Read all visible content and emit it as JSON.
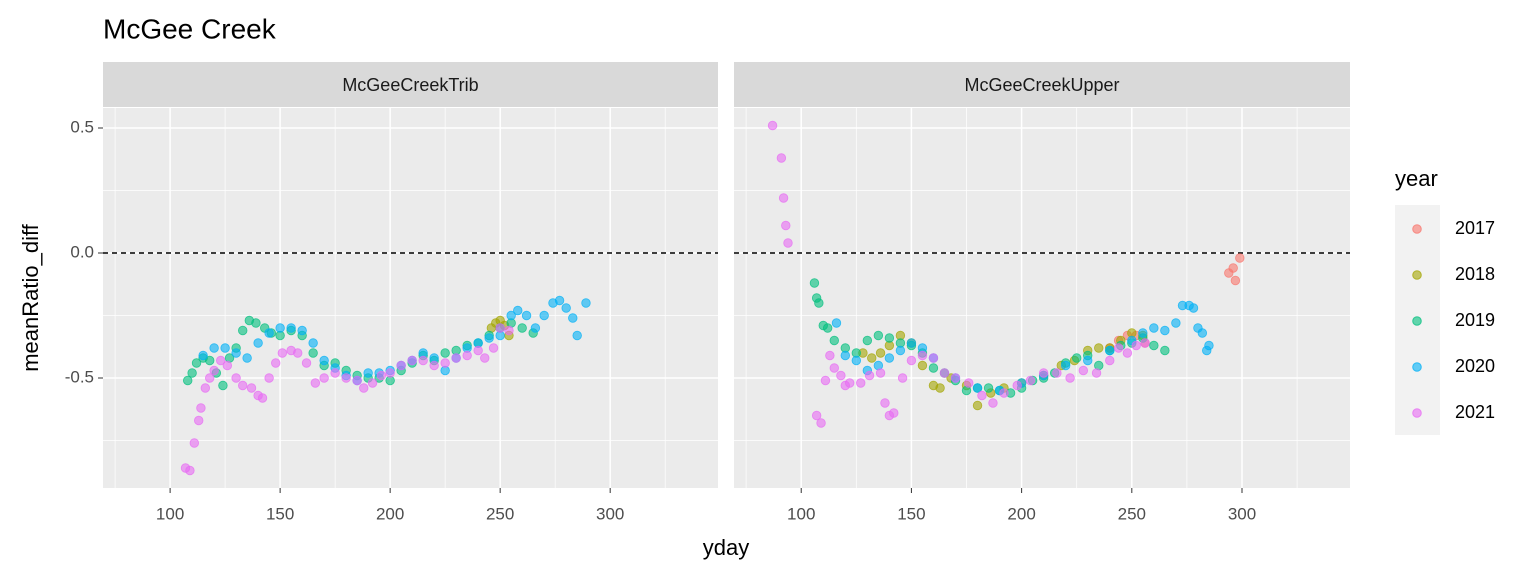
{
  "title": "McGee Creek",
  "x_label": "yday",
  "y_label": "meanRatio_diff",
  "legend_title": "year",
  "chart_data": [
    {
      "type": "scatter",
      "facet": "McGeeCreekTrib",
      "xlim": [
        69.5,
        349
      ],
      "ylim": [
        -0.94,
        0.58
      ],
      "xticks": [
        100,
        150,
        200,
        250,
        300
      ],
      "yticks": [
        -0.5,
        {
          "value": 0,
          "label": "0.0"
        },
        0.5
      ],
      "grid": true,
      "reference_line": 0,
      "series": [
        {
          "name": "2018",
          "color": "#A3A500",
          "x": [
            246,
            248,
            250,
            252,
            254
          ],
          "values": [
            -0.3,
            -0.28,
            -0.27,
            -0.29,
            -0.33
          ]
        },
        {
          "name": "2019",
          "color": "#00BF7D",
          "x": [
            108,
            110,
            112,
            115,
            118,
            121,
            124,
            127,
            130,
            133,
            136,
            139,
            143,
            146,
            150,
            155,
            160,
            165,
            170,
            175,
            180,
            185,
            190,
            195,
            200,
            205,
            210,
            215,
            220,
            225,
            230,
            235,
            240,
            245,
            250,
            255,
            260,
            265
          ],
          "values": [
            -0.51,
            -0.48,
            -0.44,
            -0.42,
            -0.43,
            -0.48,
            -0.53,
            -0.42,
            -0.38,
            -0.31,
            -0.27,
            -0.28,
            -0.3,
            -0.32,
            -0.33,
            -0.31,
            -0.33,
            -0.4,
            -0.45,
            -0.44,
            -0.47,
            -0.49,
            -0.5,
            -0.5,
            -0.51,
            -0.47,
            -0.44,
            -0.41,
            -0.43,
            -0.4,
            -0.39,
            -0.37,
            -0.36,
            -0.33,
            -0.3,
            -0.28,
            -0.3,
            -0.32
          ]
        },
        {
          "name": "2020",
          "color": "#00B0F6",
          "x": [
            115,
            120,
            125,
            130,
            135,
            140,
            145,
            150,
            155,
            160,
            165,
            170,
            175,
            180,
            185,
            190,
            195,
            200,
            205,
            210,
            215,
            220,
            225,
            230,
            235,
            240,
            245,
            250,
            255,
            258,
            262,
            266,
            270,
            274,
            277,
            280,
            283,
            285,
            289
          ],
          "values": [
            -0.41,
            -0.38,
            -0.38,
            -0.4,
            -0.42,
            -0.36,
            -0.32,
            -0.3,
            -0.3,
            -0.31,
            -0.36,
            -0.43,
            -0.46,
            -0.49,
            -0.51,
            -0.48,
            -0.48,
            -0.47,
            -0.45,
            -0.43,
            -0.4,
            -0.42,
            -0.47,
            -0.42,
            -0.38,
            -0.36,
            -0.34,
            -0.33,
            -0.25,
            -0.23,
            -0.25,
            -0.3,
            -0.25,
            -0.2,
            -0.19,
            -0.22,
            -0.26,
            -0.33,
            -0.2
          ]
        },
        {
          "name": "2021",
          "color": "#E76BF3",
          "x": [
            107,
            109,
            111,
            113,
            114,
            116,
            118,
            120,
            123,
            126,
            130,
            133,
            137,
            140,
            142,
            145,
            148,
            151,
            155,
            158,
            162,
            166,
            170,
            175,
            180,
            185,
            188,
            192,
            196,
            200,
            205,
            210,
            215,
            220,
            225,
            230,
            235,
            240,
            243,
            247,
            250,
            254
          ],
          "values": [
            -0.86,
            -0.87,
            -0.76,
            -0.67,
            -0.62,
            -0.54,
            -0.5,
            -0.47,
            -0.43,
            -0.45,
            -0.5,
            -0.53,
            -0.54,
            -0.57,
            -0.58,
            -0.5,
            -0.44,
            -0.4,
            -0.39,
            -0.4,
            -0.44,
            -0.52,
            -0.5,
            -0.48,
            -0.5,
            -0.51,
            -0.54,
            -0.52,
            -0.49,
            -0.48,
            -0.45,
            -0.43,
            -0.43,
            -0.45,
            -0.44,
            -0.42,
            -0.41,
            -0.39,
            -0.42,
            -0.38,
            -0.3,
            -0.31
          ]
        }
      ]
    },
    {
      "type": "scatter",
      "facet": "McGeeCreekUpper",
      "xlim": [
        69.5,
        349
      ],
      "ylim": [
        -0.94,
        0.58
      ],
      "xticks": [
        100,
        150,
        200,
        250,
        300
      ],
      "yticks": [
        -0.5,
        {
          "value": 0,
          "label": "0.0"
        },
        0.5
      ],
      "grid": true,
      "reference_line": 0,
      "series": [
        {
          "name": "2017",
          "color": "#F8766D",
          "x": [
            240,
            244,
            248,
            252,
            256,
            294,
            296,
            297,
            299
          ],
          "values": [
            -0.38,
            -0.35,
            -0.33,
            -0.33,
            -0.36,
            -0.08,
            -0.06,
            -0.11,
            -0.02
          ]
        },
        {
          "name": "2018",
          "color": "#A3A500",
          "x": [
            128,
            132,
            136,
            140,
            145,
            150,
            155,
            160,
            163,
            168,
            175,
            180,
            186,
            192,
            200,
            210,
            218,
            224,
            230,
            235,
            240,
            245,
            250,
            255
          ],
          "values": [
            -0.4,
            -0.42,
            -0.4,
            -0.37,
            -0.33,
            -0.36,
            -0.45,
            -0.53,
            -0.54,
            -0.5,
            -0.53,
            -0.61,
            -0.56,
            -0.54,
            -0.52,
            -0.49,
            -0.45,
            -0.43,
            -0.39,
            -0.38,
            -0.38,
            -0.35,
            -0.32,
            -0.33
          ]
        },
        {
          "name": "2019",
          "color": "#00BF7D",
          "x": [
            106,
            107,
            108,
            110,
            112,
            115,
            120,
            125,
            130,
            135,
            140,
            145,
            150,
            155,
            160,
            165,
            170,
            175,
            180,
            185,
            190,
            195,
            200,
            205,
            210,
            215,
            220,
            225,
            230,
            235,
            240,
            245,
            250,
            255,
            260,
            265
          ],
          "values": [
            -0.12,
            -0.18,
            -0.2,
            -0.29,
            -0.3,
            -0.35,
            -0.38,
            -0.4,
            -0.35,
            -0.33,
            -0.34,
            -0.36,
            -0.37,
            -0.4,
            -0.46,
            -0.48,
            -0.51,
            -0.55,
            -0.54,
            -0.54,
            -0.55,
            -0.56,
            -0.54,
            -0.51,
            -0.5,
            -0.48,
            -0.44,
            -0.42,
            -0.41,
            -0.45,
            -0.39,
            -0.37,
            -0.36,
            -0.34,
            -0.37,
            -0.39
          ]
        },
        {
          "name": "2020",
          "color": "#00B0F6",
          "x": [
            116,
            120,
            125,
            130,
            135,
            140,
            145,
            150,
            155,
            160,
            170,
            180,
            190,
            200,
            210,
            220,
            230,
            240,
            250,
            255,
            260,
            265,
            270,
            273,
            276,
            278,
            280,
            282,
            284,
            285
          ],
          "values": [
            -0.28,
            -0.41,
            -0.43,
            -0.47,
            -0.45,
            -0.42,
            -0.39,
            -0.36,
            -0.38,
            -0.42,
            -0.5,
            -0.54,
            -0.55,
            -0.52,
            -0.49,
            -0.45,
            -0.43,
            -0.39,
            -0.35,
            -0.32,
            -0.3,
            -0.31,
            -0.28,
            -0.21,
            -0.21,
            -0.22,
            -0.3,
            -0.32,
            -0.39,
            -0.37
          ]
        },
        {
          "name": "2021",
          "color": "#E76BF3",
          "x": [
            87,
            91,
            92,
            93,
            94,
            107,
            109,
            111,
            113,
            115,
            118,
            120,
            122,
            127,
            131,
            136,
            138,
            140,
            142,
            146,
            150,
            155,
            160,
            165,
            170,
            176,
            182,
            187,
            192,
            198,
            204,
            210,
            216,
            222,
            228,
            234,
            240,
            244,
            248,
            252,
            256
          ],
          "values": [
            0.51,
            0.38,
            0.22,
            0.11,
            0.04,
            -0.65,
            -0.68,
            -0.51,
            -0.41,
            -0.46,
            -0.49,
            -0.53,
            -0.52,
            -0.52,
            -0.49,
            -0.48,
            -0.6,
            -0.65,
            -0.64,
            -0.5,
            -0.43,
            -0.41,
            -0.42,
            -0.48,
            -0.5,
            -0.52,
            -0.57,
            -0.6,
            -0.56,
            -0.53,
            -0.51,
            -0.48,
            -0.48,
            -0.5,
            -0.47,
            -0.48,
            -0.43,
            -0.38,
            -0.4,
            -0.37,
            -0.36
          ]
        }
      ]
    }
  ]
}
